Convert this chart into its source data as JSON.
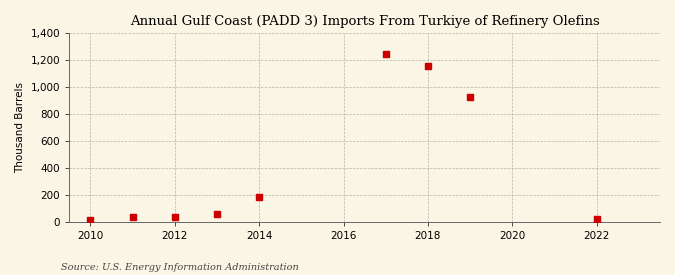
{
  "title": "Annual Gulf Coast (PADD 3) Imports From Turkiye of Refinery Olefins",
  "ylabel": "Thousand Barrels",
  "source": "Source: U.S. Energy Information Administration",
  "background_color": "#faf5e4",
  "years": [
    2010,
    2011,
    2012,
    2013,
    2014,
    2017,
    2018,
    2019,
    2022
  ],
  "values": [
    10,
    35,
    35,
    60,
    185,
    1245,
    1155,
    930,
    20
  ],
  "marker_color": "#cc0000",
  "marker_size": 4,
  "xlim": [
    2009.5,
    2023.5
  ],
  "ylim": [
    0,
    1400
  ],
  "yticks": [
    0,
    200,
    400,
    600,
    800,
    1000,
    1200,
    1400
  ],
  "xticks": [
    2010,
    2012,
    2014,
    2016,
    2018,
    2020,
    2022
  ],
  "grid_color": "#999999",
  "title_fontsize": 9.5,
  "label_fontsize": 7.5,
  "tick_fontsize": 7.5,
  "source_fontsize": 7.0
}
